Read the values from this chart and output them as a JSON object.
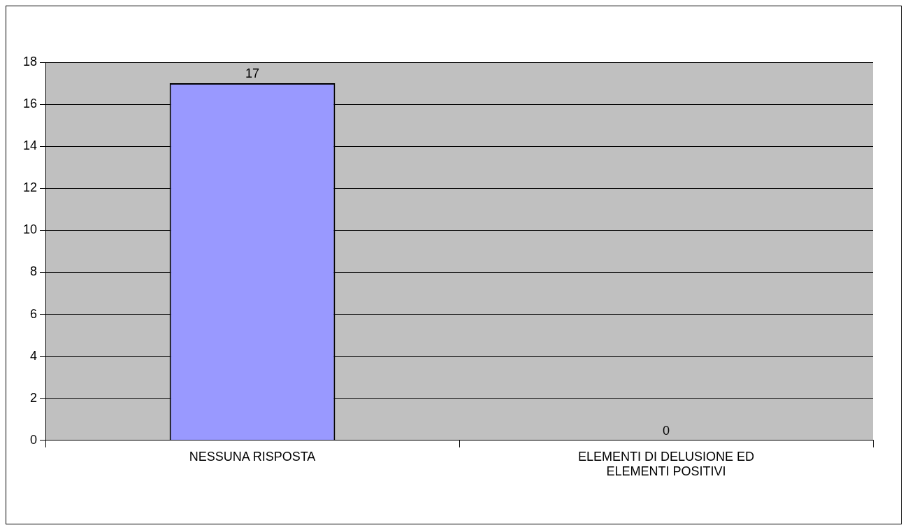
{
  "chart_data": {
    "type": "bar",
    "categories": [
      "NESSUNA RISPOSTA",
      "ELEMENTI DI DELUSIONE ED ELEMENTI POSITIVI"
    ],
    "values": [
      17,
      0
    ],
    "color": "#9999ff",
    "ylim": [
      0,
      18
    ],
    "yticks": [
      0,
      2,
      4,
      6,
      8,
      10,
      12,
      14,
      16,
      18
    ],
    "grid": "y",
    "data_labels": true,
    "legend": false
  }
}
